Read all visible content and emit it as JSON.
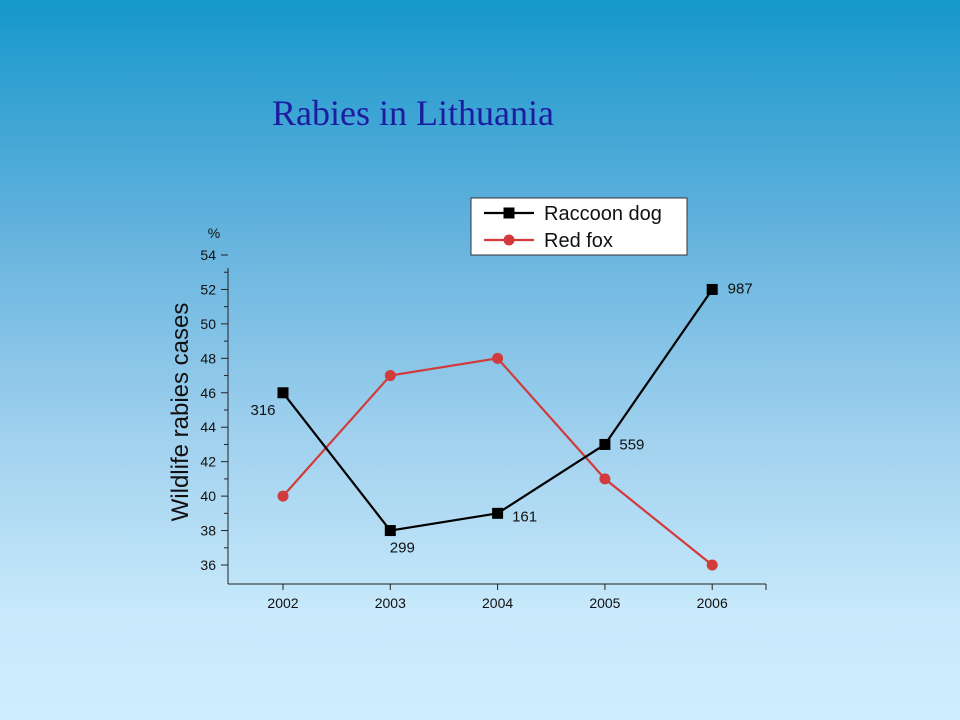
{
  "slide": {
    "title": "Rabies in Lithuania"
  },
  "chart_data": {
    "type": "line",
    "title": "Rabies in Lithuania",
    "xlabel": "",
    "ylabel": "Wildlife rabies cases",
    "yunit": "%",
    "categories": [
      "2002",
      "2003",
      "2004",
      "2005",
      "2006"
    ],
    "ylim": [
      35,
      55
    ],
    "yticks": [
      36,
      38,
      40,
      42,
      44,
      46,
      48,
      50,
      52,
      54
    ],
    "grid": false,
    "legend_position": "top-right",
    "series": [
      {
        "name": "Raccoon dog",
        "color": "#000000",
        "marker": "square",
        "values": [
          46,
          38,
          39,
          43,
          52
        ],
        "labels": [
          "316",
          "299",
          "161",
          "559",
          "987"
        ]
      },
      {
        "name": "Red fox",
        "color": "#d23b3b",
        "marker": "circle",
        "values": [
          40,
          47,
          48,
          41,
          36
        ]
      }
    ]
  }
}
